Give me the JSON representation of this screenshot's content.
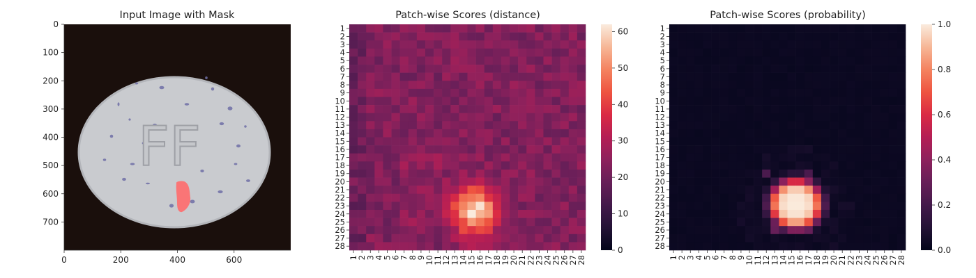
{
  "panels": {
    "input": {
      "title": "Input Image with Mask",
      "xticks": [
        "0",
        "200",
        "400",
        "600"
      ],
      "yticks": [
        "0",
        "100",
        "200",
        "300",
        "400",
        "500",
        "600",
        "700"
      ],
      "xlim": [
        0,
        800
      ],
      "ylim": [
        0,
        800
      ],
      "tablet_text": "FF",
      "colors": {
        "background": "#1a0f0c",
        "tablet": "#c9cbcf",
        "mask": "#ff6b6b",
        "speckle": "#6f6fa6"
      }
    },
    "distance": {
      "title": "Patch-wise Scores (distance)",
      "colorbar_ticks": [
        "0",
        "10",
        "20",
        "30",
        "40",
        "50",
        "60"
      ],
      "colorbar_range": [
        0,
        62
      ]
    },
    "probability": {
      "title": "Patch-wise Scores (probability)",
      "colorbar_ticks": [
        "0.0",
        "0.2",
        "0.4",
        "0.6",
        "0.8",
        "1.0"
      ],
      "colorbar_range": [
        0,
        1
      ]
    }
  },
  "chart_data": [
    {
      "type": "heatmap",
      "title": "Patch-wise Scores (distance)",
      "rows": 28,
      "cols": 28,
      "row_labels": [
        "1",
        "2",
        "3",
        "4",
        "5",
        "6",
        "7",
        "8",
        "9",
        "10",
        "11",
        "12",
        "13",
        "14",
        "15",
        "16",
        "17",
        "18",
        "19",
        "20",
        "21",
        "22",
        "23",
        "24",
        "25",
        "26",
        "27",
        "28"
      ],
      "col_labels": [
        "1",
        "2",
        "3",
        "4",
        "5",
        "6",
        "7",
        "8",
        "9",
        "10",
        "11",
        "12",
        "13",
        "14",
        "15",
        "16",
        "17",
        "18",
        "19",
        "20",
        "21",
        "22",
        "23",
        "24",
        "25",
        "26",
        "27",
        "28"
      ],
      "value_range": [
        0,
        62
      ],
      "colormap": "rocket",
      "background_level": 22,
      "hotspot": {
        "center_row": 24,
        "center_col": 15.5,
        "peak": 61
      },
      "values_note": "estimated"
    },
    {
      "type": "heatmap",
      "title": "Patch-wise Scores (probability)",
      "rows": 28,
      "cols": 28,
      "row_labels": [
        "1",
        "2",
        "3",
        "4",
        "5",
        "6",
        "7",
        "8",
        "9",
        "10",
        "11",
        "12",
        "13",
        "14",
        "15",
        "16",
        "17",
        "18",
        "19",
        "20",
        "21",
        "22",
        "23",
        "24",
        "25",
        "26",
        "27",
        "28"
      ],
      "col_labels": [
        "1",
        "2",
        "3",
        "4",
        "5",
        "6",
        "7",
        "8",
        "9",
        "10",
        "11",
        "12",
        "13",
        "14",
        "15",
        "16",
        "17",
        "18",
        "19",
        "20",
        "21",
        "22",
        "23",
        "24",
        "25",
        "26",
        "27",
        "28"
      ],
      "value_range": [
        0,
        1
      ],
      "colormap": "rocket",
      "background_level": 0,
      "hotspot": {
        "center_row": 23,
        "center_col": 15.5,
        "peak": 1.0
      }
    }
  ]
}
